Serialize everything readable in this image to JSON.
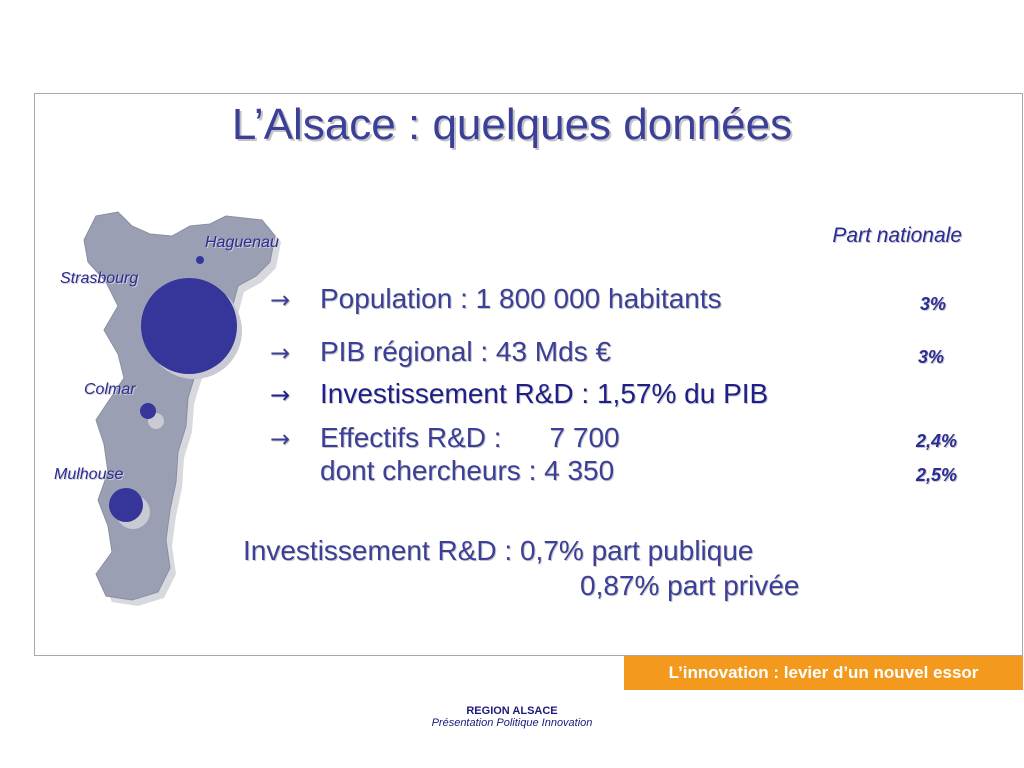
{
  "slide": {
    "title": "L’Alsace : quelques données",
    "column_header": "Part nationale"
  },
  "cities": {
    "haguenau": "Haguenau",
    "strasbourg": "Strasbourg",
    "colmar": "Colmar",
    "mulhouse": "Mulhouse"
  },
  "stats": {
    "arrow": "→",
    "population": {
      "label": "Population : 1 800 000 habitants",
      "share": "3%"
    },
    "pib": {
      "label": "PIB régional :  43 Mds €",
      "share": "3%"
    },
    "investissement": {
      "label": "Investissement R&D :  1,57% du PIB"
    },
    "effectifs": {
      "label": "Effectifs R&D :",
      "value": "7 700",
      "share": "2,4%"
    },
    "chercheurs": {
      "label": "dont chercheurs : 4 350",
      "share": "2,5%"
    }
  },
  "rd_split": {
    "public": "Investissement R&D : 0,7% part publique",
    "prive": "0,87% part privée"
  },
  "banner": {
    "text": "L’innovation : levier d’un nouvel essor"
  },
  "footer": {
    "org": "REGION ALSACE",
    "subtitle": "Présentation Politique Innovation"
  },
  "colors": {
    "title": "#3b3f97",
    "city_dot": "#35359a",
    "map_fill": "#9a9fb3",
    "banner": "#f39a1e"
  }
}
